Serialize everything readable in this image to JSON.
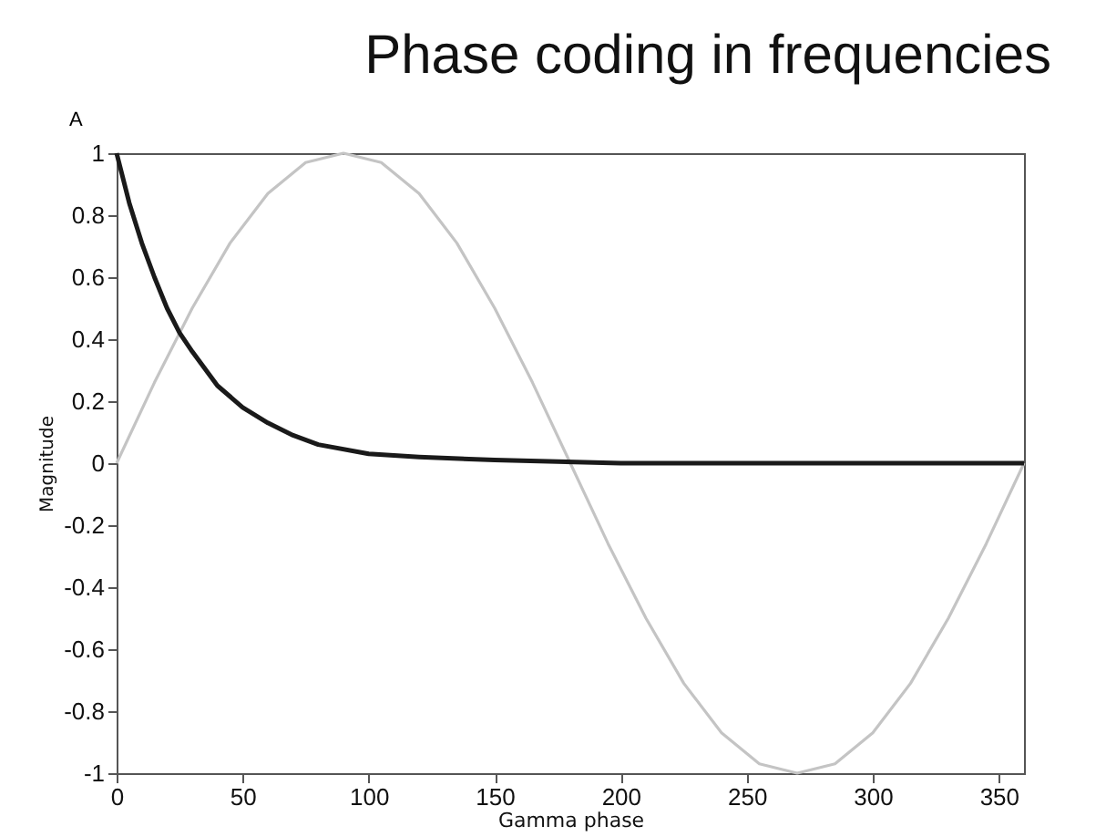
{
  "chart_data": {
    "type": "line",
    "title": "Phase coding in frequencies",
    "xlabel": "Gamma phase",
    "ylabel": "Magnitude",
    "annotations": [
      "A"
    ],
    "xlim": [
      0,
      360
    ],
    "xticks": [
      0,
      50,
      100,
      150,
      200,
      250,
      300,
      350
    ],
    "ylim": [
      -1,
      1
    ],
    "yticks": [
      -1,
      -0.8,
      -0.6,
      -0.4,
      -0.2,
      0,
      0.2,
      0.4,
      0.6,
      0.8,
      1
    ],
    "grid": false,
    "marker": "none",
    "line_style": "solid",
    "series": [
      {
        "color": "#c4c4c4",
        "x": [
          0,
          15,
          30,
          45,
          60,
          75,
          90,
          105,
          120,
          135,
          150,
          165,
          180,
          195,
          210,
          225,
          240,
          255,
          270,
          285,
          300,
          315,
          330,
          345,
          360
        ],
        "values": [
          0,
          0.26,
          0.5,
          0.71,
          0.87,
          0.97,
          1,
          0.97,
          0.87,
          0.71,
          0.5,
          0.26,
          0,
          -0.26,
          -0.5,
          -0.71,
          -0.87,
          -0.97,
          -1,
          -0.97,
          -0.87,
          -0.71,
          -0.5,
          -0.26,
          0
        ]
      },
      {
        "color": "#1a1a1a",
        "x": [
          0,
          5,
          10,
          15,
          20,
          25,
          30,
          40,
          50,
          60,
          70,
          80,
          100,
          120,
          150,
          200,
          250,
          300,
          360
        ],
        "values": [
          1,
          0.84,
          0.71,
          0.6,
          0.5,
          0.42,
          0.36,
          0.25,
          0.18,
          0.13,
          0.09,
          0.06,
          0.03,
          0.02,
          0.01,
          0,
          0,
          0,
          0
        ]
      }
    ]
  }
}
